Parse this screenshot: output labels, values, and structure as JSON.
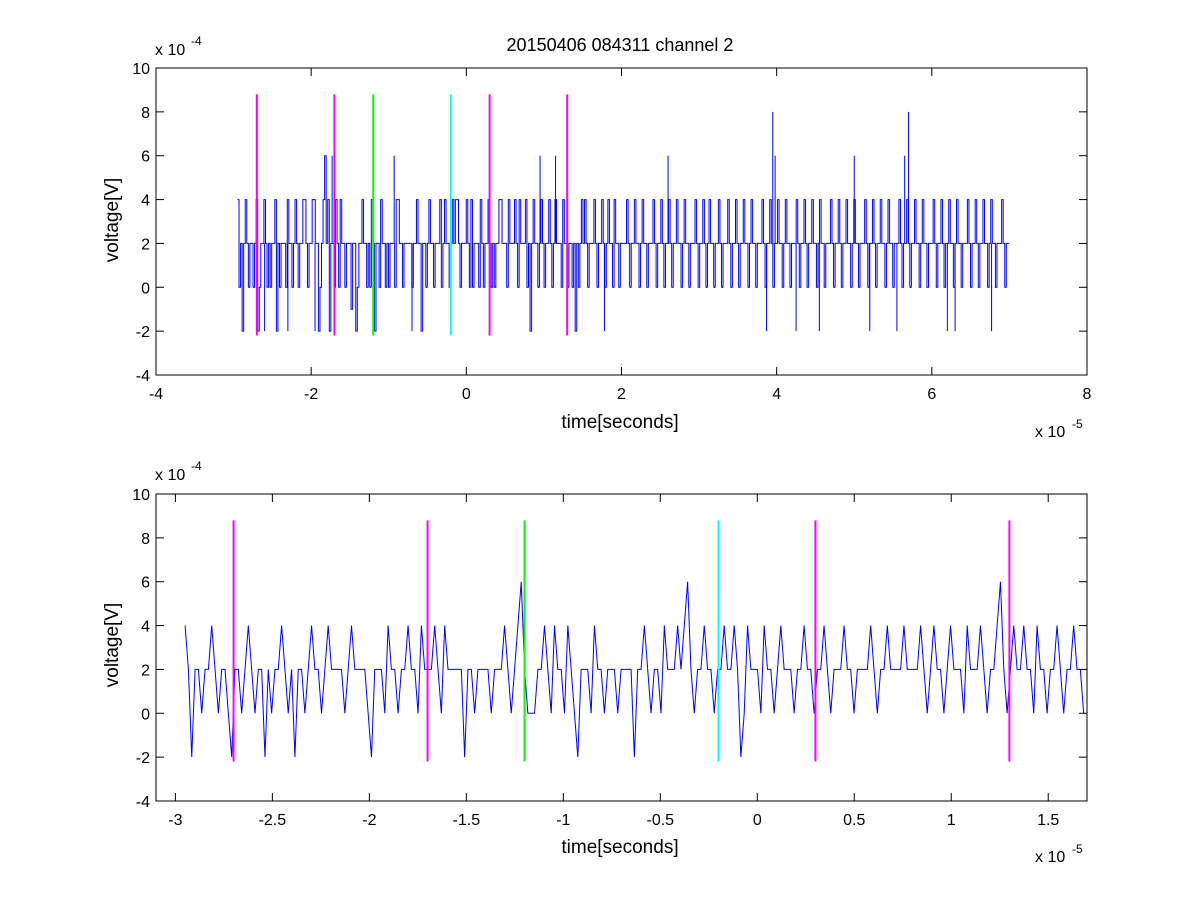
{
  "figure": {
    "title": "20150406 084311 channel 2",
    "background": "#ffffff"
  },
  "colors": {
    "signal": "#0000ff",
    "marker_magenta": "#ff00ff",
    "marker_green": "#00ff00",
    "marker_cyan": "#00ffff",
    "axes": "#000000"
  },
  "chart_data": [
    {
      "type": "line",
      "title": "20150406 084311 channel 2",
      "xlabel": "time[seconds]",
      "ylabel": "voltage[V]",
      "x_exponent_label": "x 10",
      "x_exponent": "-5",
      "y_exponent_label": "x 10",
      "y_exponent": "-4",
      "xlim": [
        -4,
        8
      ],
      "ylim": [
        -4,
        10
      ],
      "x_ticks": [
        -4,
        -2,
        0,
        2,
        4,
        6,
        8
      ],
      "x_tick_labels": [
        "-4",
        "-2",
        "0",
        "2",
        "4",
        "6",
        "8"
      ],
      "y_ticks": [
        -4,
        -2,
        0,
        2,
        4,
        6,
        8,
        10
      ],
      "y_tick_labels": [
        "-4",
        "-2",
        "0",
        "2",
        "4",
        "6",
        "8",
        "10"
      ],
      "grid": false,
      "series": [
        {
          "color": "#0000ff",
          "style": "stairs",
          "x_start": -2.95,
          "x_end": 7.0,
          "dt": 0.05,
          "levels": [
            4,
            0,
            2,
            -2,
            2,
            4,
            2,
            0,
            2,
            2,
            0,
            2,
            4,
            -2,
            0,
            2,
            2,
            4,
            2,
            0,
            2,
            0,
            2,
            2,
            4,
            -2,
            2,
            0,
            2,
            2,
            2,
            0,
            4,
            2,
            2,
            0,
            2,
            4,
            2,
            0,
            2,
            2,
            4,
            4,
            2,
            0,
            2,
            2,
            4,
            4,
            2,
            2,
            -2,
            0,
            2,
            4,
            6,
            2,
            4,
            -2,
            2,
            2,
            0,
            4,
            2,
            0,
            4,
            2,
            2,
            0,
            2,
            2,
            2,
            -1,
            2,
            2,
            -2,
            0,
            2,
            2,
            4,
            2,
            2,
            0,
            2,
            0,
            4,
            2,
            -2,
            2,
            2,
            0,
            4,
            2,
            2,
            0,
            2,
            0,
            2,
            2,
            2,
            0,
            4,
            4,
            2,
            2,
            0,
            2,
            2,
            2,
            2,
            2,
            0,
            2,
            2,
            4,
            2,
            2,
            -2,
            2,
            2,
            0,
            2,
            4,
            2,
            2,
            0,
            2,
            2,
            2,
            4,
            0,
            2,
            4,
            2,
            2,
            0,
            2,
            4,
            2,
            4,
            4,
            2,
            0,
            2,
            2,
            2,
            4,
            2,
            0,
            4,
            0,
            2,
            2,
            2,
            0,
            4,
            2,
            0,
            2,
            2,
            4,
            2,
            0,
            2,
            0,
            2,
            2,
            4,
            4,
            2,
            2,
            2,
            0,
            4,
            2,
            2,
            2,
            4,
            2,
            0,
            4,
            2,
            2,
            2,
            4,
            0,
            2,
            -2,
            2,
            4,
            2,
            2,
            0,
            2,
            4,
            2,
            0,
            2,
            2,
            4,
            2,
            0,
            2,
            4,
            2,
            2,
            2,
            0,
            4,
            2,
            2,
            0,
            2,
            2,
            0,
            2,
            -2,
            2,
            0,
            2,
            4,
            2,
            4,
            2,
            0,
            2,
            2,
            2,
            4,
            2,
            0,
            2,
            2,
            4,
            2,
            0,
            2,
            4,
            2,
            2,
            0,
            4,
            2,
            2,
            0,
            2,
            2,
            2,
            2,
            4,
            2,
            0,
            2,
            2,
            4,
            2,
            2,
            0,
            2,
            4,
            2,
            2,
            0,
            2,
            2,
            2,
            4,
            2,
            0,
            2,
            2,
            4,
            2,
            0,
            2,
            2,
            4,
            2,
            0,
            2,
            2,
            4,
            2,
            2,
            0,
            2,
            4,
            2,
            2,
            0,
            2,
            2,
            2,
            4,
            2,
            0,
            2,
            2,
            4,
            2,
            0,
            2,
            4,
            2,
            2,
            0,
            2,
            2,
            4,
            2,
            0,
            2,
            2,
            2,
            4,
            2,
            0,
            2,
            2,
            4,
            2,
            0,
            2,
            2,
            4,
            2,
            2,
            0,
            2,
            4,
            2,
            2,
            0,
            2,
            2,
            2,
            4,
            2,
            0,
            2,
            2,
            4,
            2,
            0,
            2,
            2,
            4,
            2,
            2,
            0,
            2,
            4,
            2,
            2,
            0,
            2,
            2,
            2,
            4,
            2,
            0,
            2,
            2,
            4,
            2,
            0,
            2,
            2,
            4,
            2,
            2,
            0,
            2,
            4,
            2,
            2,
            0,
            2,
            2,
            2,
            4,
            2,
            0,
            2,
            2,
            4,
            2,
            0,
            2,
            2,
            4,
            2,
            2,
            0,
            2,
            4,
            2,
            2,
            0,
            2,
            2,
            2,
            4,
            2,
            0,
            2,
            2,
            4,
            2,
            0,
            2,
            2,
            4,
            2,
            2,
            0,
            2,
            4,
            2,
            2,
            0,
            2,
            2,
            2,
            4,
            2,
            0,
            2,
            2,
            4,
            2,
            0,
            2,
            2,
            4,
            2,
            2,
            0,
            2,
            4,
            2,
            2,
            0,
            2,
            2,
            2,
            4,
            2,
            0,
            2,
            2,
            4,
            2,
            0,
            2,
            2,
            4,
            2,
            2,
            0,
            2,
            4,
            2,
            2,
            0,
            2,
            2,
            2,
            4,
            2,
            0,
            2,
            2,
            4,
            2,
            0,
            2,
            2,
            4,
            2,
            2,
            0,
            2,
            4,
            2,
            2,
            0,
            2,
            2,
            2,
            4,
            2,
            0,
            2,
            2
          ]
        }
      ],
      "markers": [
        {
          "x": -2.7,
          "color": "#ff00ff",
          "y_from": -2.2,
          "y_to": 8.8
        },
        {
          "x": -1.7,
          "color": "#ff00ff",
          "y_from": -2.2,
          "y_to": 8.8
        },
        {
          "x": -1.2,
          "color": "#00ff00",
          "y_from": -2.2,
          "y_to": 8.8
        },
        {
          "x": -0.2,
          "color": "#00ffff",
          "y_from": -2.2,
          "y_to": 8.8
        },
        {
          "x": 0.3,
          "color": "#ff00ff",
          "y_from": -2.2,
          "y_to": 8.8
        },
        {
          "x": 1.3,
          "color": "#ff00ff",
          "y_from": -2.2,
          "y_to": 8.8
        }
      ],
      "spikes": [
        {
          "x": -1.73,
          "y": 6
        },
        {
          "x": -0.93,
          "y": 6
        },
        {
          "x": 0.95,
          "y": 6
        },
        {
          "x": 1.15,
          "y": 6
        },
        {
          "x": 1.78,
          "y": -2
        },
        {
          "x": 2.6,
          "y": 6
        },
        {
          "x": 3.95,
          "y": 8
        },
        {
          "x": 3.98,
          "y": 6
        },
        {
          "x": 5.0,
          "y": 6
        },
        {
          "x": 5.65,
          "y": 6
        },
        {
          "x": 5.7,
          "y": 8
        },
        {
          "x": 3.87,
          "y": -2
        },
        {
          "x": 4.25,
          "y": -2
        },
        {
          "x": 4.55,
          "y": -2
        },
        {
          "x": 5.2,
          "y": -2
        },
        {
          "x": 5.55,
          "y": -2
        },
        {
          "x": 6.2,
          "y": -2
        },
        {
          "x": 6.3,
          "y": -2
        },
        {
          "x": 6.77,
          "y": -2
        },
        {
          "x": -0.7,
          "y": -2
        },
        {
          "x": -2.3,
          "y": -2
        },
        {
          "x": -1.95,
          "y": -2
        },
        {
          "x": -2.6,
          "y": -2
        }
      ]
    },
    {
      "type": "line",
      "xlabel": "time[seconds]",
      "ylabel": "voltage[V]",
      "x_exponent_label": "x 10",
      "x_exponent": "-5",
      "y_exponent_label": "x 10",
      "y_exponent": "-4",
      "xlim": [
        -3.1,
        1.7
      ],
      "ylim": [
        -4,
        10
      ],
      "x_ticks": [
        -3,
        -2.5,
        -2,
        -1.5,
        -1,
        -0.5,
        0,
        0.5,
        1,
        1.5
      ],
      "x_tick_labels": [
        "-3",
        "-2.5",
        "-2",
        "-1.5",
        "-1",
        "-0.5",
        "0",
        "0.5",
        "1",
        "1.5"
      ],
      "y_ticks": [
        -4,
        -2,
        0,
        2,
        4,
        6,
        8,
        10
      ],
      "y_tick_labels": [
        "-4",
        "-2",
        "0",
        "2",
        "4",
        "6",
        "8",
        "10"
      ],
      "grid": false,
      "series": [
        {
          "color": "#0000ff",
          "style": "line",
          "x_start": -2.95,
          "x_end": 1.7,
          "dt": 0.02,
          "levels": [
            4,
            2,
            -2,
            2,
            2,
            0,
            2,
            2,
            4,
            2,
            0,
            2,
            2,
            0,
            -2,
            2,
            2,
            0,
            2,
            4,
            2,
            0,
            2,
            2,
            -2,
            2,
            0,
            2,
            2,
            4,
            2,
            0,
            2,
            -2,
            2,
            2,
            0,
            2,
            4,
            2,
            2,
            0,
            2,
            4,
            2,
            2,
            2,
            2,
            0,
            2,
            4,
            2,
            2,
            2,
            2,
            0,
            -2,
            2,
            2,
            2,
            0,
            4,
            2,
            2,
            0,
            2,
            2,
            4,
            2,
            2,
            0,
            4,
            2,
            2,
            2,
            4,
            2,
            0,
            4,
            2,
            2,
            2,
            2,
            2,
            -2,
            2,
            2,
            0,
            2,
            2,
            2,
            2,
            0,
            2,
            2,
            2,
            4,
            2,
            0,
            2,
            4,
            6,
            2,
            0,
            0,
            0,
            2,
            2,
            4,
            2,
            0,
            4,
            2,
            2,
            0,
            4,
            2,
            0,
            -2,
            2,
            2,
            2,
            0,
            4,
            2,
            2,
            0,
            2,
            2,
            2,
            0,
            2,
            2,
            2,
            2,
            -2,
            2,
            2,
            4,
            2,
            0,
            2,
            2,
            0,
            4,
            2,
            2,
            2,
            4,
            2,
            4,
            6,
            2,
            0,
            2,
            2,
            4,
            2,
            2,
            0,
            2,
            2,
            4,
            2,
            2,
            4,
            2,
            -2,
            0,
            4,
            2,
            2,
            2,
            0,
            4,
            2,
            2,
            0,
            2,
            4,
            2,
            2,
            2,
            0,
            2,
            2,
            4,
            2,
            2,
            0,
            2,
            2,
            4,
            2,
            0,
            2,
            2,
            2,
            4,
            2,
            2,
            0,
            2,
            2,
            2,
            2,
            4,
            2,
            0,
            2,
            2,
            4,
            2,
            2,
            2,
            2,
            4,
            2,
            2,
            2,
            2,
            4,
            2,
            0,
            2,
            4,
            2,
            2,
            0,
            2,
            4,
            2,
            2,
            2,
            0,
            4,
            2,
            2,
            2,
            4,
            2,
            0,
            2,
            2,
            4,
            6,
            2,
            0,
            2,
            4,
            2,
            2,
            4,
            2,
            2,
            0,
            4,
            2,
            2,
            0,
            2,
            2,
            4,
            2,
            0,
            2,
            2,
            4,
            2,
            2,
            0
          ]
        }
      ],
      "markers": [
        {
          "x": -2.7,
          "color": "#ff00ff",
          "y_from": -2.2,
          "y_to": 8.8
        },
        {
          "x": -1.7,
          "color": "#ff00ff",
          "y_from": -2.2,
          "y_to": 8.8
        },
        {
          "x": -1.2,
          "color": "#00ff00",
          "y_from": -2.2,
          "y_to": 8.8
        },
        {
          "x": -0.2,
          "color": "#00ffff",
          "y_from": -2.2,
          "y_to": 8.8
        },
        {
          "x": 0.3,
          "color": "#ff00ff",
          "y_from": -2.2,
          "y_to": 8.8
        },
        {
          "x": 1.3,
          "color": "#ff00ff",
          "y_from": -2.2,
          "y_to": 8.8
        }
      ]
    }
  ]
}
